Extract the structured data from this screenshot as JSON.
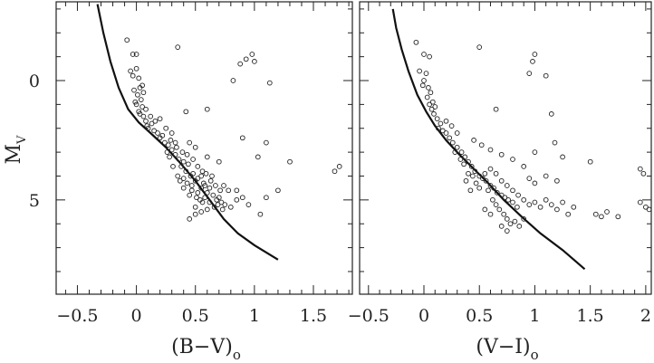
{
  "chart_data": [
    {
      "type": "scatter",
      "xlabel": "(B−V)",
      "xlabel_sub": "o",
      "ylabel": "M",
      "ylabel_sub": "V",
      "xlim": [
        -0.68,
        1.83
      ],
      "ylim": [
        8.95,
        -3.3
      ],
      "y_reversed": true,
      "xticks": [
        -0.5,
        0,
        0.5,
        1,
        1.5
      ],
      "xtick_labels": [
        "−0.5",
        "0",
        "0.5",
        "1",
        "1.5"
      ],
      "yticks": [
        0,
        5
      ],
      "ytick_labels": [
        "0",
        "5"
      ],
      "curve": [
        [
          -0.33,
          -3.2
        ],
        [
          -0.28,
          -2.0
        ],
        [
          -0.22,
          -0.8
        ],
        [
          -0.15,
          0.3
        ],
        [
          -0.07,
          1.2
        ],
        [
          0.02,
          1.75
        ],
        [
          0.12,
          2.2
        ],
        [
          0.25,
          2.8
        ],
        [
          0.38,
          3.5
        ],
        [
          0.5,
          4.2
        ],
        [
          0.62,
          5.0
        ],
        [
          0.74,
          5.8
        ],
        [
          0.86,
          6.4
        ],
        [
          1.0,
          6.9
        ],
        [
          1.2,
          7.5
        ]
      ],
      "points": [
        [
          -0.08,
          -1.7
        ],
        [
          -0.03,
          -1.1
        ],
        [
          0.0,
          -1.1
        ],
        [
          0.35,
          -1.4
        ],
        [
          -0.05,
          -0.4
        ],
        [
          0.0,
          -0.5
        ],
        [
          -0.03,
          -0.2
        ],
        [
          0.02,
          -0.1
        ],
        [
          0.05,
          0.2
        ],
        [
          -0.02,
          0.4
        ],
        [
          0.01,
          0.6
        ],
        [
          0.04,
          0.8
        ],
        [
          0.0,
          1.0
        ],
        [
          0.02,
          1.3
        ],
        [
          0.06,
          1.5
        ],
        [
          0.08,
          1.7
        ],
        [
          0.05,
          1.1
        ],
        [
          0.03,
          1.4
        ],
        [
          -0.01,
          0.9
        ],
        [
          0.03,
          0.3
        ],
        [
          0.06,
          0.5
        ],
        [
          0.09,
          1.9
        ],
        [
          0.1,
          2.0
        ],
        [
          0.13,
          1.8
        ],
        [
          0.15,
          2.1
        ],
        [
          0.18,
          2.2
        ],
        [
          0.2,
          2.4
        ],
        [
          0.22,
          2.3
        ],
        [
          0.24,
          2.6
        ],
        [
          0.27,
          2.7
        ],
        [
          0.3,
          2.9
        ],
        [
          0.26,
          3.0
        ],
        [
          0.33,
          3.1
        ],
        [
          0.29,
          2.5
        ],
        [
          0.36,
          3.3
        ],
        [
          0.38,
          3.6
        ],
        [
          0.4,
          3.4
        ],
        [
          0.42,
          3.8
        ],
        [
          0.44,
          3.5
        ],
        [
          0.46,
          4.0
        ],
        [
          0.48,
          3.9
        ],
        [
          0.5,
          4.2
        ],
        [
          0.52,
          4.1
        ],
        [
          0.47,
          4.4
        ],
        [
          0.55,
          4.5
        ],
        [
          0.57,
          4.3
        ],
        [
          0.6,
          4.7
        ],
        [
          0.62,
          4.5
        ],
        [
          0.65,
          4.8
        ],
        [
          0.68,
          5.0
        ],
        [
          0.7,
          4.9
        ],
        [
          0.72,
          5.1
        ],
        [
          0.58,
          4.9
        ],
        [
          0.54,
          5.0
        ],
        [
          0.5,
          5.3
        ],
        [
          0.45,
          4.8
        ],
        [
          0.4,
          4.5
        ],
        [
          0.35,
          4.0
        ],
        [
          0.6,
          5.4
        ],
        [
          0.66,
          5.3
        ],
        [
          0.75,
          5.2
        ],
        [
          0.8,
          5.3
        ],
        [
          0.85,
          5.0
        ],
        [
          0.78,
          4.6
        ],
        [
          0.63,
          4.2
        ],
        [
          0.56,
          3.8
        ],
        [
          0.52,
          3.6
        ],
        [
          0.48,
          3.3
        ],
        [
          0.43,
          3.1
        ],
        [
          0.4,
          4.1
        ],
        [
          0.37,
          4.2
        ],
        [
          0.55,
          4.0
        ],
        [
          0.58,
          4.4
        ],
        [
          0.62,
          5.1
        ],
        [
          0.67,
          4.4
        ],
        [
          0.71,
          4.6
        ],
        [
          0.74,
          4.4
        ],
        [
          0.9,
          4.9
        ],
        [
          0.95,
          5.2
        ],
        [
          1.05,
          5.6
        ],
        [
          1.1,
          4.9
        ],
        [
          0.85,
          4.6
        ],
        [
          0.7,
          3.4
        ],
        [
          0.6,
          3.2
        ],
        [
          0.5,
          2.8
        ],
        [
          0.45,
          2.6
        ],
        [
          0.2,
          1.6
        ],
        [
          0.25,
          2.0
        ],
        [
          0.12,
          1.5
        ],
        [
          0.08,
          1.2
        ],
        [
          0.16,
          1.7
        ],
        [
          0.3,
          2.2
        ],
        [
          0.33,
          2.6
        ],
        [
          0.52,
          4.7
        ],
        [
          0.45,
          5.8
        ],
        [
          0.5,
          5.6
        ],
        [
          0.55,
          5.5
        ],
        [
          0.42,
          1.3
        ],
        [
          0.6,
          1.2
        ],
        [
          0.9,
          2.4
        ],
        [
          1.1,
          2.6
        ],
        [
          0.82,
          0.0
        ],
        [
          0.88,
          -0.7
        ],
        [
          0.93,
          -0.9
        ],
        [
          0.98,
          -1.1
        ],
        [
          1.0,
          -0.8
        ],
        [
          1.13,
          0.1
        ],
        [
          1.3,
          3.4
        ],
        [
          1.72,
          3.6
        ],
        [
          1.68,
          3.8
        ],
        [
          1.2,
          4.6
        ],
        [
          1.03,
          3.2
        ],
        [
          0.28,
          3.2
        ],
        [
          0.31,
          3.6
        ],
        [
          0.34,
          2.8
        ],
        [
          0.39,
          3.0
        ],
        [
          0.43,
          4.3
        ],
        [
          0.47,
          4.6
        ],
        [
          0.51,
          4.9
        ],
        [
          0.64,
          4.0
        ],
        [
          0.69,
          5.2
        ],
        [
          0.73,
          5.4
        ],
        [
          0.56,
          5.1
        ],
        [
          0.59,
          3.9
        ]
      ]
    },
    {
      "type": "scatter",
      "xlabel": "(V−I)",
      "xlabel_sub": "o",
      "ylabel": "",
      "xlim": [
        -0.58,
        2.05
      ],
      "ylim": [
        8.95,
        -3.3
      ],
      "y_reversed": true,
      "xticks": [
        -0.5,
        0,
        0.5,
        1,
        1.5,
        2
      ],
      "xtick_labels": [
        "−0.5",
        "0",
        "0.5",
        "1",
        "1.5",
        "2"
      ],
      "yticks": [
        0,
        5
      ],
      "ytick_labels": [
        "",
        ""
      ],
      "curve": [
        [
          -0.28,
          -3.0
        ],
        [
          -0.25,
          -2.2
        ],
        [
          -0.2,
          -1.3
        ],
        [
          -0.14,
          -0.4
        ],
        [
          -0.06,
          0.6
        ],
        [
          0.02,
          1.3
        ],
        [
          0.1,
          1.9
        ],
        [
          0.2,
          2.5
        ],
        [
          0.32,
          3.1
        ],
        [
          0.45,
          3.7
        ],
        [
          0.58,
          4.3
        ],
        [
          0.72,
          5.0
        ],
        [
          0.88,
          5.7
        ],
        [
          1.05,
          6.4
        ],
        [
          1.25,
          7.1
        ],
        [
          1.45,
          7.9
        ]
      ],
      "points": [
        [
          -0.07,
          -1.6
        ],
        [
          0.0,
          -1.1
        ],
        [
          0.05,
          -1.0
        ],
        [
          0.5,
          -1.4
        ],
        [
          -0.04,
          -0.4
        ],
        [
          0.02,
          -0.3
        ],
        [
          0.0,
          0.0
        ],
        [
          0.04,
          0.3
        ],
        [
          0.06,
          0.5
        ],
        [
          -0.01,
          0.2
        ],
        [
          0.03,
          0.7
        ],
        [
          0.05,
          1.0
        ],
        [
          0.07,
          1.2
        ],
        [
          0.09,
          1.4
        ],
        [
          0.12,
          1.6
        ],
        [
          0.15,
          1.8
        ],
        [
          0.1,
          1.1
        ],
        [
          0.08,
          0.9
        ],
        [
          0.13,
          2.0
        ],
        [
          0.17,
          2.1
        ],
        [
          0.2,
          2.2
        ],
        [
          0.23,
          2.4
        ],
        [
          0.26,
          2.6
        ],
        [
          0.3,
          2.8
        ],
        [
          0.34,
          3.0
        ],
        [
          0.37,
          3.2
        ],
        [
          0.4,
          3.4
        ],
        [
          0.43,
          3.6
        ],
        [
          0.46,
          3.8
        ],
        [
          0.5,
          4.0
        ],
        [
          0.53,
          4.1
        ],
        [
          0.56,
          4.2
        ],
        [
          0.6,
          4.4
        ],
        [
          0.63,
          4.5
        ],
        [
          0.66,
          4.7
        ],
        [
          0.7,
          4.8
        ],
        [
          0.73,
          4.9
        ],
        [
          0.76,
          5.0
        ],
        [
          0.8,
          5.1
        ],
        [
          0.84,
          5.3
        ],
        [
          0.55,
          3.9
        ],
        [
          0.58,
          4.6
        ],
        [
          0.62,
          5.0
        ],
        [
          0.65,
          5.2
        ],
        [
          0.68,
          5.4
        ],
        [
          0.72,
          5.6
        ],
        [
          0.75,
          5.8
        ],
        [
          0.78,
          6.0
        ],
        [
          0.82,
          5.9
        ],
        [
          0.86,
          6.1
        ],
        [
          0.9,
          5.8
        ],
        [
          0.5,
          4.5
        ],
        [
          0.47,
          4.3
        ],
        [
          0.44,
          4.0
        ],
        [
          0.4,
          3.9
        ],
        [
          0.36,
          3.5
        ],
        [
          0.33,
          3.3
        ],
        [
          0.28,
          3.0
        ],
        [
          0.6,
          3.7
        ],
        [
          0.65,
          3.9
        ],
        [
          0.7,
          4.2
        ],
        [
          0.75,
          4.4
        ],
        [
          0.8,
          4.6
        ],
        [
          0.85,
          4.8
        ],
        [
          0.9,
          5.0
        ],
        [
          0.95,
          5.2
        ],
        [
          1.0,
          5.1
        ],
        [
          1.05,
          5.3
        ],
        [
          1.1,
          5.0
        ],
        [
          1.15,
          5.2
        ],
        [
          1.2,
          5.4
        ],
        [
          1.25,
          5.1
        ],
        [
          1.3,
          5.6
        ],
        [
          1.35,
          5.3
        ],
        [
          1.55,
          5.6
        ],
        [
          1.6,
          5.7
        ],
        [
          1.65,
          5.5
        ],
        [
          1.75,
          5.7
        ],
        [
          1.95,
          5.1
        ],
        [
          2.0,
          5.3
        ],
        [
          2.03,
          5.4
        ],
        [
          1.95,
          3.7
        ],
        [
          1.98,
          3.9
        ],
        [
          1.5,
          3.4
        ],
        [
          1.1,
          4.0
        ],
        [
          1.0,
          4.3
        ],
        [
          0.95,
          4.1
        ],
        [
          1.2,
          4.2
        ],
        [
          0.9,
          3.6
        ],
        [
          0.8,
          3.3
        ],
        [
          0.7,
          3.1
        ],
        [
          0.6,
          2.9
        ],
        [
          0.52,
          2.7
        ],
        [
          0.45,
          2.5
        ],
        [
          0.3,
          2.2
        ],
        [
          0.25,
          1.9
        ],
        [
          0.2,
          1.7
        ],
        [
          0.65,
          1.2
        ],
        [
          1.15,
          1.4
        ],
        [
          1.0,
          3.0
        ],
        [
          0.95,
          -0.3
        ],
        [
          0.98,
          -0.8
        ],
        [
          1.0,
          -1.1
        ],
        [
          1.1,
          -0.2
        ],
        [
          1.25,
          3.2
        ],
        [
          1.18,
          2.6
        ],
        [
          0.7,
          6.1
        ],
        [
          0.75,
          6.3
        ],
        [
          0.55,
          5.4
        ],
        [
          0.6,
          5.6
        ],
        [
          0.42,
          4.6
        ],
        [
          0.38,
          4.2
        ]
      ]
    }
  ]
}
